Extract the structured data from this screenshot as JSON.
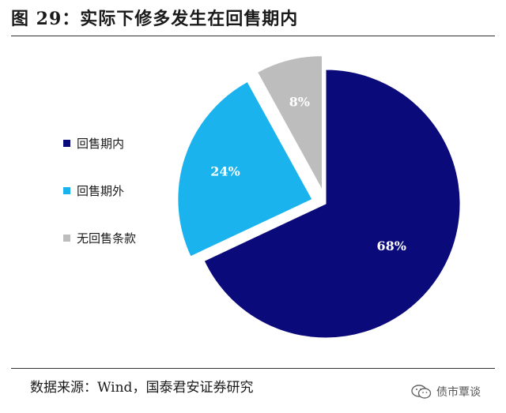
{
  "header": {
    "title": "图 29：实际下修多发生在回售期内"
  },
  "chart_data": {
    "type": "pie",
    "title": "",
    "slices": [
      {
        "name": "回售期内",
        "value": 68,
        "label": "68%",
        "color": "#0b0a7a",
        "exploded": false
      },
      {
        "name": "回售期外",
        "value": 24,
        "label": "24%",
        "color": "#1ab3ee",
        "exploded": true
      },
      {
        "name": "无回售条款",
        "value": 8,
        "label": "8%",
        "color": "#bdbdbd",
        "exploded": true
      }
    ],
    "start_angle_deg": 0,
    "direction": "clockwise",
    "legend_position": "left"
  },
  "legend": [
    {
      "label": "回售期内",
      "color": "#0b0a7a"
    },
    {
      "label": "回售期外",
      "color": "#1ab3ee"
    },
    {
      "label": "无回售条款",
      "color": "#bdbdbd"
    }
  ],
  "footer": {
    "source": "数据来源：Wind，国泰君安证券研究",
    "watermark": "债市覃谈",
    "watermark_icon": "wechat-icon"
  }
}
